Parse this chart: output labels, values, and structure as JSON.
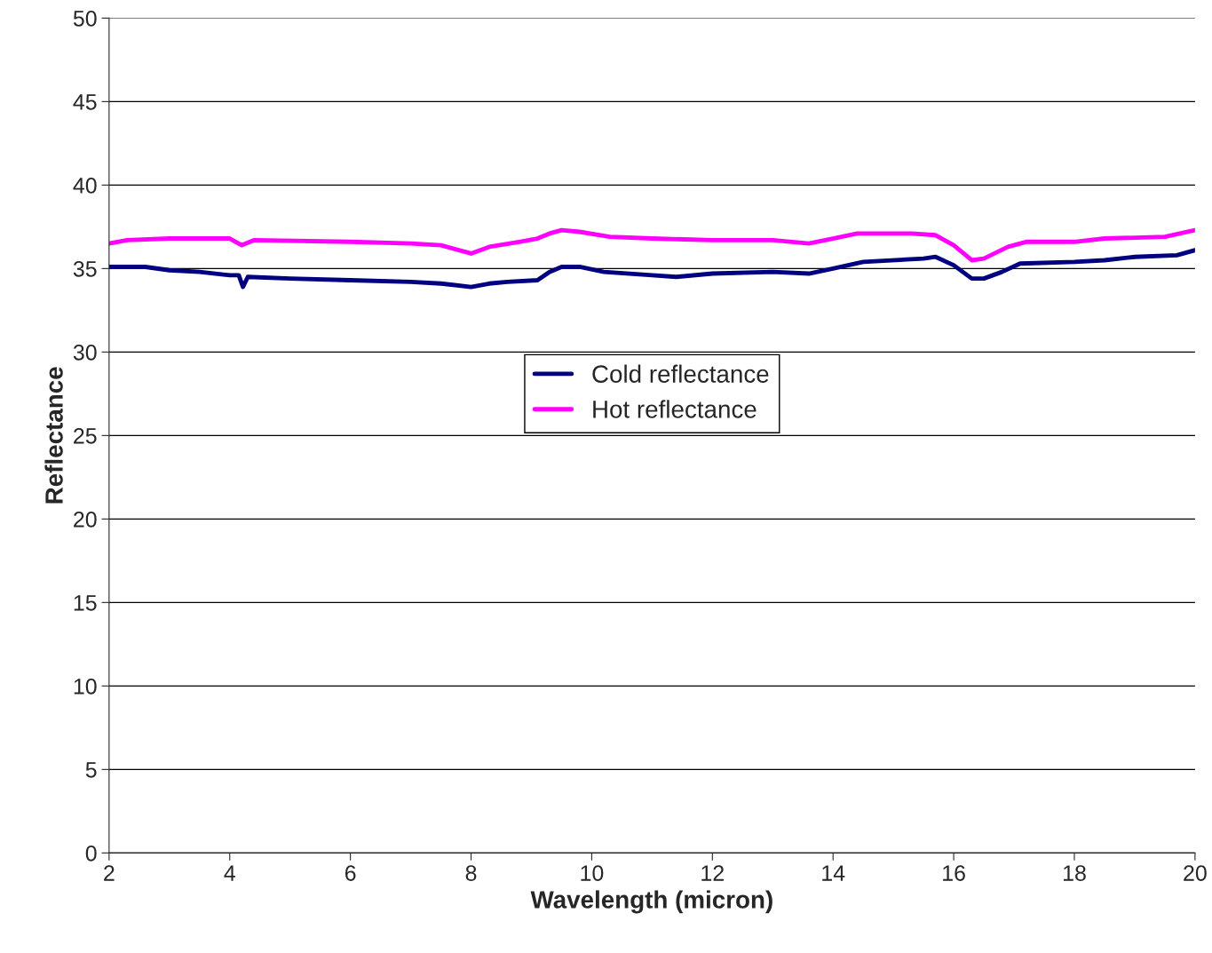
{
  "chart_data": {
    "type": "line",
    "xlabel": "Wavelength (micron)",
    "ylabel": "Reflectance",
    "xlim": [
      2,
      20
    ],
    "xticks": [
      2,
      4,
      6,
      8,
      10,
      12,
      14,
      16,
      18,
      20
    ],
    "ylim": [
      0,
      50
    ],
    "yticks": [
      0,
      5,
      10,
      15,
      20,
      25,
      30,
      35,
      40,
      45,
      50
    ],
    "grid": "y",
    "legend": "center",
    "marker": "none",
    "line_style": "solid",
    "series": [
      {
        "name": "Cold reflectance",
        "color": "#000080",
        "x": [
          2,
          2.6,
          3,
          3.5,
          4,
          4.15,
          4.22,
          4.3,
          5,
          6,
          7,
          7.5,
          8,
          8.3,
          8.6,
          9.1,
          9.3,
          9.5,
          9.8,
          10.2,
          11,
          11.4,
          12,
          13,
          13.6,
          14,
          14.5,
          15.5,
          15.7,
          16,
          16.3,
          16.5,
          16.8,
          17.1,
          18,
          18.5,
          19,
          19.7,
          20
        ],
        "values": [
          35.1,
          35.1,
          34.9,
          34.8,
          34.6,
          34.6,
          33.9,
          34.5,
          34.4,
          34.3,
          34.2,
          34.1,
          33.9,
          34.1,
          34.2,
          34.3,
          34.8,
          35.1,
          35.1,
          34.8,
          34.6,
          34.5,
          34.7,
          34.8,
          34.7,
          35.0,
          35.4,
          35.6,
          35.7,
          35.2,
          34.4,
          34.4,
          34.8,
          35.3,
          35.4,
          35.5,
          35.7,
          35.8,
          36.1
        ]
      },
      {
        "name": "Hot reflectance",
        "color": "#ff00ff",
        "x": [
          2,
          2.3,
          3,
          4,
          4.2,
          4.4,
          6,
          7,
          7.5,
          8,
          8.3,
          8.8,
          9.1,
          9.3,
          9.5,
          9.8,
          10.3,
          11,
          12,
          13,
          13.6,
          14,
          14.4,
          15.3,
          15.7,
          16,
          16.3,
          16.5,
          16.9,
          17.2,
          18,
          18.5,
          19.5,
          20
        ],
        "values": [
          36.5,
          36.7,
          36.8,
          36.8,
          36.4,
          36.7,
          36.6,
          36.5,
          36.4,
          35.9,
          36.3,
          36.6,
          36.8,
          37.1,
          37.3,
          37.2,
          36.9,
          36.8,
          36.7,
          36.7,
          36.5,
          36.8,
          37.1,
          37.1,
          37.0,
          36.4,
          35.5,
          35.6,
          36.3,
          36.6,
          36.6,
          36.8,
          36.9,
          37.3
        ]
      }
    ]
  }
}
